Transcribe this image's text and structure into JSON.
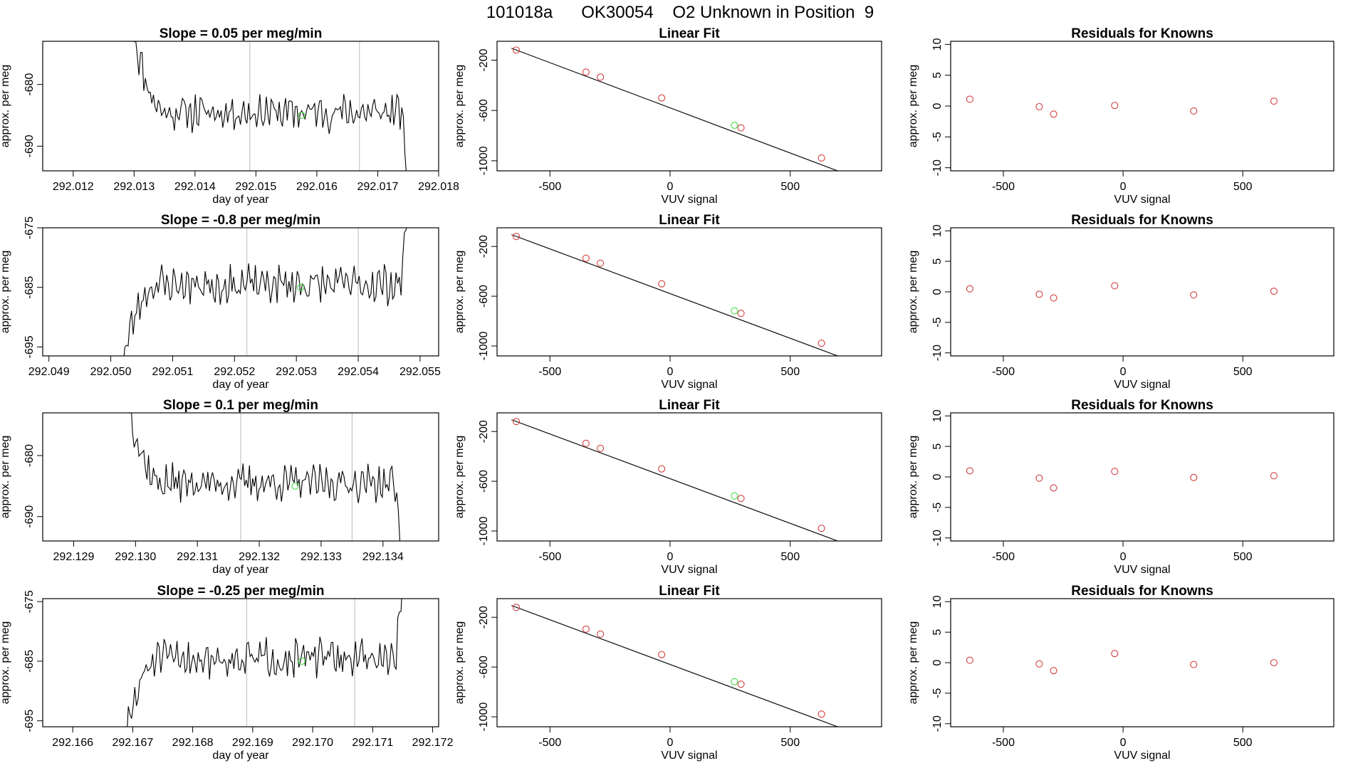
{
  "page_title": "101018a      OK30054    O2 Unknown in Position  9",
  "colors": {
    "trace": "#000000",
    "known_point": "#d04040",
    "unknown_point": "#55dd55",
    "marker_line": "#bbbbbb",
    "fit_line": "#000000"
  },
  "chart_data": [
    {
      "type": "line",
      "panel": "time-series",
      "row": 1,
      "title": "Slope =  0.05  per meg/min",
      "xlabel": "day of year",
      "ylabel": "approx. per meg",
      "xlim": [
        292.0115,
        292.018
      ],
      "ylim": [
        -694,
        -673
      ],
      "xticks": [
        "292.012",
        "292.013",
        "292.014",
        "292.015",
        "292.016",
        "292.017",
        "292.018"
      ],
      "yticks": [
        "-680",
        "-690"
      ],
      "markers_x": [
        292.0149,
        292.0167
      ],
      "unknown_point": {
        "x": 292.01575,
        "y": -685
      },
      "trace_start": 292.013,
      "trace_end": 292.0175,
      "trace_mean": -684.5,
      "trace_noise": 2.2,
      "trace_head": -672,
      "trace_tail_drop": -696,
      "trace_seed": 11
    },
    {
      "type": "scatter",
      "panel": "linear-fit",
      "row": 1,
      "title": "Linear Fit",
      "xlabel": "VUV signal",
      "ylabel": "approx. per meg",
      "xlim": [
        -720,
        880
      ],
      "ylim": [
        -1080,
        -50
      ],
      "xticks": [
        "-500",
        "0",
        "500"
      ],
      "yticks": [
        "-200",
        "-600",
        "-1000"
      ],
      "known_points": [
        [
          -640,
          -120
        ],
        [
          -350,
          -295
        ],
        [
          -290,
          -335
        ],
        [
          -35,
          -500
        ],
        [
          295,
          -738
        ],
        [
          630,
          -978
        ]
      ],
      "unknown_point": [
        268,
        -718
      ],
      "fit_line": [
        [
          -660,
          -105
        ],
        [
          850,
          -1190
        ]
      ]
    },
    {
      "type": "scatter",
      "panel": "residuals",
      "row": 1,
      "title": "Residuals for Knowns",
      "xlabel": "VUV signal",
      "ylabel": "approx. per meg",
      "xlim": [
        -720,
        880
      ],
      "ylim": [
        -10.5,
        10.5
      ],
      "xticks": [
        "-500",
        "0",
        "500"
      ],
      "yticks": [
        "10",
        "5",
        "0",
        "-5",
        "-10"
      ],
      "points": [
        [
          -640,
          1.1
        ],
        [
          -350,
          -0.1
        ],
        [
          -290,
          -1.3
        ],
        [
          -35,
          0.1
        ],
        [
          295,
          -0.8
        ],
        [
          630,
          0.8
        ]
      ]
    },
    {
      "type": "line",
      "panel": "time-series",
      "row": 2,
      "title": "Slope =  -0.8  per meg/min",
      "xlabel": "day of year",
      "ylabel": "approx. per meg",
      "xlim": [
        292.0489,
        292.0553
      ],
      "ylim": [
        -696.5,
        -675
      ],
      "xticks": [
        "292.049",
        "292.050",
        "292.051",
        "292.052",
        "292.053",
        "292.054",
        "292.055"
      ],
      "yticks": [
        "-675",
        "-685",
        "-695"
      ],
      "markers_x": [
        292.0522,
        292.054
      ],
      "unknown_point": {
        "x": 292.05307,
        "y": -685
      },
      "trace_start": 292.0502,
      "trace_end": 292.0548,
      "trace_mean": -684.5,
      "trace_noise": 2.4,
      "trace_head": -697,
      "trace_tail_drop": -672,
      "trace_seed": 23
    },
    {
      "type": "scatter",
      "panel": "linear-fit",
      "row": 2,
      "title": "Linear Fit",
      "xlabel": "VUV signal",
      "ylabel": "approx. per meg",
      "xlim": [
        -720,
        880
      ],
      "ylim": [
        -1080,
        -50
      ],
      "xticks": [
        "-500",
        "0",
        "500"
      ],
      "yticks": [
        "-200",
        "-600",
        "-1000"
      ],
      "known_points": [
        [
          -640,
          -120
        ],
        [
          -350,
          -295
        ],
        [
          -290,
          -335
        ],
        [
          -35,
          -500
        ],
        [
          295,
          -738
        ],
        [
          630,
          -978
        ]
      ],
      "unknown_point": [
        268,
        -718
      ],
      "fit_line": [
        [
          -660,
          -105
        ],
        [
          850,
          -1190
        ]
      ]
    },
    {
      "type": "scatter",
      "panel": "residuals",
      "row": 2,
      "title": "Residuals for Knowns",
      "xlabel": "VUV signal",
      "ylabel": "approx. per meg",
      "xlim": [
        -720,
        880
      ],
      "ylim": [
        -10.5,
        10.5
      ],
      "xticks": [
        "-500",
        "0",
        "500"
      ],
      "yticks": [
        "10",
        "5",
        "0",
        "-5",
        "-10"
      ],
      "points": [
        [
          -640,
          0.5
        ],
        [
          -350,
          -0.4
        ],
        [
          -290,
          -1.0
        ],
        [
          -35,
          1.0
        ],
        [
          295,
          -0.5
        ],
        [
          630,
          0.1
        ]
      ]
    },
    {
      "type": "line",
      "panel": "time-series",
      "row": 3,
      "title": "Slope =  0.1  per meg/min",
      "xlabel": "day of year",
      "ylabel": "approx. per meg",
      "xlim": [
        292.1285,
        292.1349
      ],
      "ylim": [
        -694,
        -673
      ],
      "xticks": [
        "292.129",
        "292.130",
        "292.131",
        "292.132",
        "292.133",
        "292.134"
      ],
      "yticks": [
        "-680",
        "-690"
      ],
      "markers_x": [
        292.1317,
        292.1335
      ],
      "unknown_point": {
        "x": 292.13258,
        "y": -685
      },
      "trace_start": 292.1299,
      "trace_end": 292.1343,
      "trace_mean": -684.5,
      "trace_noise": 2.2,
      "trace_head": -672,
      "trace_tail_drop": -696,
      "trace_seed": 37
    },
    {
      "type": "scatter",
      "panel": "linear-fit",
      "row": 3,
      "title": "Linear Fit",
      "xlabel": "VUV signal",
      "ylabel": "approx. per meg",
      "xlim": [
        -720,
        880
      ],
      "ylim": [
        -1080,
        -50
      ],
      "xticks": [
        "-500",
        "0",
        "500"
      ],
      "yticks": [
        "-200",
        "-600",
        "-1000"
      ],
      "known_points": [
        [
          -640,
          -120
        ],
        [
          -350,
          -295
        ],
        [
          -290,
          -335
        ],
        [
          -35,
          -500
        ],
        [
          295,
          -738
        ],
        [
          630,
          -978
        ]
      ],
      "unknown_point": [
        268,
        -718
      ],
      "fit_line": [
        [
          -660,
          -105
        ],
        [
          850,
          -1190
        ]
      ]
    },
    {
      "type": "scatter",
      "panel": "residuals",
      "row": 3,
      "title": "Residuals for Knowns",
      "xlabel": "VUV signal",
      "ylabel": "approx. per meg",
      "xlim": [
        -720,
        880
      ],
      "ylim": [
        -10.5,
        10.5
      ],
      "xticks": [
        "-500",
        "0",
        "500"
      ],
      "yticks": [
        "10",
        "5",
        "0",
        "-5",
        "-10"
      ],
      "points": [
        [
          -640,
          1.0
        ],
        [
          -350,
          -0.2
        ],
        [
          -290,
          -1.8
        ],
        [
          -35,
          0.9
        ],
        [
          295,
          -0.1
        ],
        [
          630,
          0.2
        ]
      ]
    },
    {
      "type": "line",
      "panel": "time-series",
      "row": 4,
      "title": "Slope =  -0.25  per meg/min",
      "xlabel": "day of year",
      "ylabel": "approx. per meg",
      "xlim": [
        292.1655,
        292.1721
      ],
      "ylim": [
        -696,
        -674.5
      ],
      "xticks": [
        "292.166",
        "292.167",
        "292.168",
        "292.169",
        "292.170",
        "292.171",
        "292.172"
      ],
      "yticks": [
        "-675",
        "-685",
        "-695"
      ],
      "markers_x": [
        292.1689,
        292.1707
      ],
      "unknown_point": {
        "x": 292.16982,
        "y": -685
      },
      "trace_start": 292.1669,
      "trace_end": 292.1715,
      "trace_mean": -684.5,
      "trace_noise": 2.3,
      "trace_head": -697,
      "trace_tail_drop": -672,
      "trace_seed": 51
    },
    {
      "type": "scatter",
      "panel": "linear-fit",
      "row": 4,
      "title": "Linear Fit",
      "xlabel": "VUV signal",
      "ylabel": "approx. per meg",
      "xlim": [
        -720,
        880
      ],
      "ylim": [
        -1080,
        -50
      ],
      "xticks": [
        "-500",
        "0",
        "500"
      ],
      "yticks": [
        "-200",
        "-600",
        "-1000"
      ],
      "known_points": [
        [
          -640,
          -120
        ],
        [
          -350,
          -295
        ],
        [
          -290,
          -335
        ],
        [
          -35,
          -500
        ],
        [
          295,
          -738
        ],
        [
          630,
          -978
        ]
      ],
      "unknown_point": [
        268,
        -718
      ],
      "fit_line": [
        [
          -660,
          -105
        ],
        [
          850,
          -1190
        ]
      ]
    },
    {
      "type": "scatter",
      "panel": "residuals",
      "row": 4,
      "title": "Residuals for Knowns",
      "xlabel": "VUV signal",
      "ylabel": "approx. per meg",
      "xlim": [
        -720,
        880
      ],
      "ylim": [
        -10.5,
        10.5
      ],
      "xticks": [
        "-500",
        "0",
        "500"
      ],
      "yticks": [
        "10",
        "5",
        "0",
        "-5",
        "-10"
      ],
      "points": [
        [
          -640,
          0.4
        ],
        [
          -350,
          -0.2
        ],
        [
          -290,
          -1.3
        ],
        [
          -35,
          1.5
        ],
        [
          295,
          -0.3
        ],
        [
          630,
          0.0
        ]
      ]
    }
  ]
}
